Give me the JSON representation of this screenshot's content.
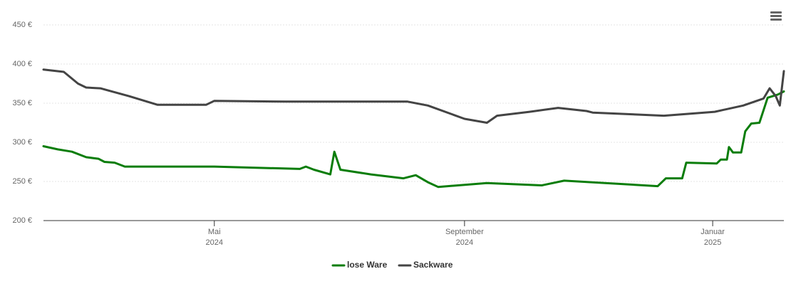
{
  "chart_data": {
    "type": "line",
    "xlim": [
      "2024-02-07",
      "2025-02-05"
    ],
    "xticks": [
      {
        "value": "2024-05-01",
        "label": [
          "Mai",
          "2024"
        ]
      },
      {
        "value": "2024-09-01",
        "label": [
          "September",
          "2024"
        ]
      },
      {
        "value": "2025-01-01",
        "label": [
          "Januar",
          "2025"
        ]
      }
    ],
    "ylim": [
      200,
      450
    ],
    "yticks": [
      {
        "value": 200,
        "label": "200 €"
      },
      {
        "value": 250,
        "label": "250 €"
      },
      {
        "value": 300,
        "label": "300 €"
      },
      {
        "value": 350,
        "label": "350 €"
      },
      {
        "value": 400,
        "label": "400 €"
      },
      {
        "value": 450,
        "label": "450 €"
      }
    ],
    "grid": true,
    "legend": "bottom",
    "series": [
      {
        "name": "lose Ware",
        "color": "#0a7d0a",
        "x": [
          "2024-02-07",
          "2024-02-14",
          "2024-02-21",
          "2024-02-28",
          "2024-03-05",
          "2024-03-08",
          "2024-03-13",
          "2024-03-18",
          "2024-05-01",
          "2024-06-12",
          "2024-06-15",
          "2024-06-19",
          "2024-06-27",
          "2024-06-29",
          "2024-07-02",
          "2024-07-17",
          "2024-08-02",
          "2024-08-08",
          "2024-08-14",
          "2024-08-19",
          "2024-09-12",
          "2024-10-09",
          "2024-10-20",
          "2024-12-05",
          "2024-12-09",
          "2024-12-17",
          "2024-12-19",
          "2025-01-03",
          "2025-01-05",
          "2025-01-08",
          "2025-01-09",
          "2025-01-11",
          "2025-01-15",
          "2025-01-17",
          "2025-01-20",
          "2025-01-24",
          "2025-01-28",
          "2025-02-02",
          "2025-02-05"
        ],
        "values": [
          295,
          291,
          288,
          281,
          279,
          275,
          274,
          269,
          269,
          266,
          269,
          265,
          259,
          288,
          265,
          259,
          254,
          258,
          249,
          243,
          248,
          245,
          251,
          244,
          254,
          254,
          274,
          273,
          278,
          278,
          294,
          287,
          287,
          314,
          324,
          325,
          357,
          361,
          365
        ]
      },
      {
        "name": "Sackware",
        "color": "#444444",
        "x": [
          "2024-02-07",
          "2024-02-17",
          "2024-02-24",
          "2024-02-28",
          "2024-03-06",
          "2024-03-20",
          "2024-04-03",
          "2024-04-27",
          "2024-05-01",
          "2024-06-05",
          "2024-08-04",
          "2024-08-14",
          "2024-09-01",
          "2024-09-12",
          "2024-09-17",
          "2024-10-03",
          "2024-10-17",
          "2024-10-31",
          "2024-11-03",
          "2024-12-08",
          "2025-01-02",
          "2025-01-16",
          "2025-01-26",
          "2025-01-29",
          "2025-02-01",
          "2025-02-03",
          "2025-02-05"
        ],
        "values": [
          393,
          390,
          375,
          370,
          369,
          359,
          348,
          348,
          353,
          352,
          352,
          347,
          330,
          325,
          334,
          339,
          344,
          340,
          338,
          334,
          339,
          347,
          356,
          369,
          359,
          347,
          391
        ]
      }
    ]
  }
}
